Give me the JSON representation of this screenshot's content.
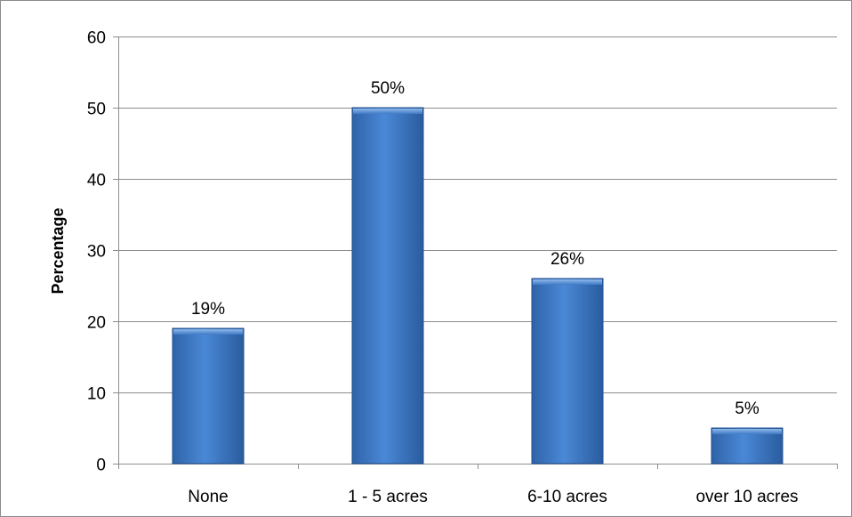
{
  "chart_data": {
    "type": "bar",
    "categories": [
      "None",
      "1 - 5 acres",
      "6-10 acres",
      "over 10 acres"
    ],
    "values": [
      19,
      50,
      26,
      5
    ],
    "data_labels": [
      "19%",
      "50%",
      "26%",
      "5%"
    ],
    "title": "",
    "xlabel": "",
    "ylabel": "Percentage",
    "ylim": [
      0,
      60
    ],
    "yticks": [
      0,
      10,
      20,
      30,
      40,
      50,
      60
    ],
    "grid": true,
    "legend": "none",
    "bar_color": "#3f7bc6"
  }
}
